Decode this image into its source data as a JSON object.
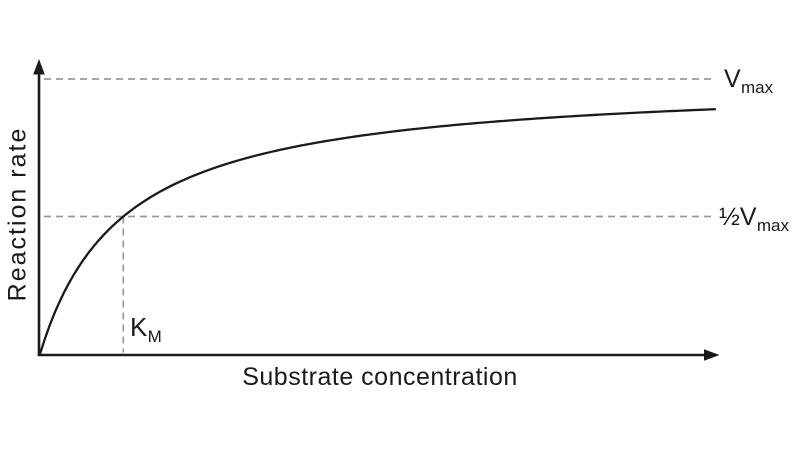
{
  "chart": {
    "y_axis_label": "Reaction rate",
    "x_axis_label": "Substrate concentration",
    "annotations": {
      "vmax_base": "V",
      "vmax_sub": "max",
      "half_vmax_base": "½V",
      "half_vmax_sub": "max",
      "km_base": "K",
      "km_sub": "M"
    },
    "colors": {
      "axis": "#1a1a1a",
      "curve": "#1a1a1a",
      "dashed_guide": "#999999",
      "background": "#ffffff"
    }
  },
  "chart_data": {
    "type": "line",
    "title": "",
    "xlabel": "Substrate concentration",
    "ylabel": "Reaction rate",
    "model": "v = Vmax·[S] / (KM + [S])",
    "km": 1,
    "vmax": 1,
    "x_range": [
      0,
      8.1
    ],
    "y_range": [
      0,
      1
    ],
    "samples": 140,
    "grid": false,
    "axes_quantitative": false,
    "guides": [
      {
        "kind": "horizontal-dashed",
        "y": 1.0,
        "label": "Vmax"
      },
      {
        "kind": "horizontal-dashed",
        "y": 0.5,
        "label": "½Vmax"
      },
      {
        "kind": "vertical-dashed",
        "x": 1.0,
        "label": "KM",
        "y_top": 0.5
      }
    ]
  }
}
